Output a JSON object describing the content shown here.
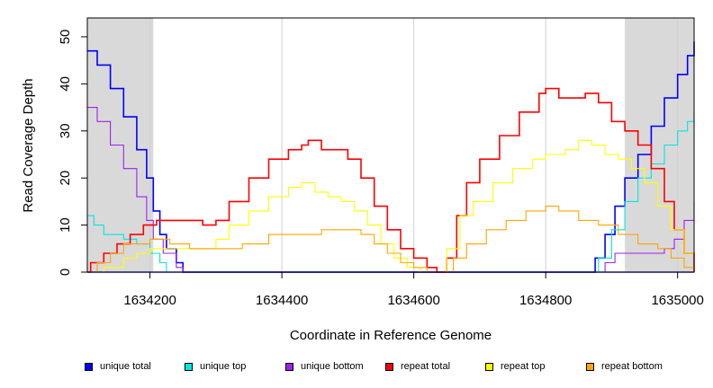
{
  "chart_data": {
    "type": "line",
    "title": "",
    "xlabel": "Coordinate in Reference Genome",
    "ylabel": "Read Coverage Depth",
    "xlim": [
      1634105,
      1635025
    ],
    "ylim": [
      0,
      54
    ],
    "x_ticks": [
      1634200,
      1634400,
      1634600,
      1634800,
      1635000
    ],
    "x_tick_labels": [
      "1634200",
      "1634400",
      "1634600",
      "1634800",
      "1635000"
    ],
    "y_ticks": [
      0,
      10,
      20,
      30,
      40,
      50
    ],
    "y_tick_labels": [
      "0",
      "10",
      "20",
      "30",
      "40",
      "50"
    ],
    "shaded_regions": [
      {
        "from": 1634105,
        "to": 1634205,
        "color": "#d9d9d9"
      },
      {
        "from": 1634920,
        "to": 1635025,
        "color": "#d9d9d9"
      }
    ],
    "series": [
      {
        "name": "unique total",
        "color": "#0000ff",
        "points": [
          [
            1634105,
            47
          ],
          [
            1634120,
            44
          ],
          [
            1634140,
            39
          ],
          [
            1634160,
            33
          ],
          [
            1634180,
            26
          ],
          [
            1634195,
            20
          ],
          [
            1634205,
            13
          ],
          [
            1634215,
            8
          ],
          [
            1634225,
            5
          ],
          [
            1634240,
            2
          ],
          [
            1634250,
            0
          ],
          [
            1634860,
            0
          ],
          [
            1634875,
            3
          ],
          [
            1634890,
            8
          ],
          [
            1634905,
            14
          ],
          [
            1634920,
            20
          ],
          [
            1634940,
            25
          ],
          [
            1634960,
            31
          ],
          [
            1634980,
            37
          ],
          [
            1635000,
            42
          ],
          [
            1635015,
            46
          ],
          [
            1635025,
            49
          ]
        ]
      },
      {
        "name": "unique top",
        "color": "#00e5e5",
        "points": [
          [
            1634105,
            12
          ],
          [
            1634115,
            10
          ],
          [
            1634130,
            8
          ],
          [
            1634160,
            7
          ],
          [
            1634180,
            6
          ],
          [
            1634200,
            4
          ],
          [
            1634215,
            2
          ],
          [
            1634225,
            0
          ],
          [
            1634865,
            0
          ],
          [
            1634880,
            3
          ],
          [
            1634900,
            9
          ],
          [
            1634920,
            15
          ],
          [
            1634940,
            20
          ],
          [
            1634960,
            23
          ],
          [
            1634980,
            27
          ],
          [
            1635000,
            30
          ],
          [
            1635015,
            32
          ],
          [
            1635025,
            34
          ]
        ]
      },
      {
        "name": "unique bottom",
        "color": "#a020f0",
        "points": [
          [
            1634105,
            35
          ],
          [
            1634120,
            32
          ],
          [
            1634140,
            27
          ],
          [
            1634160,
            22
          ],
          [
            1634180,
            16
          ],
          [
            1634195,
            11
          ],
          [
            1634205,
            7
          ],
          [
            1634220,
            4
          ],
          [
            1634240,
            1
          ],
          [
            1634250,
            0
          ],
          [
            1634875,
            0
          ],
          [
            1634890,
            2
          ],
          [
            1634905,
            4
          ],
          [
            1634930,
            4
          ],
          [
            1634960,
            4
          ],
          [
            1634980,
            5
          ],
          [
            1634995,
            7
          ],
          [
            1635010,
            11
          ],
          [
            1635025,
            15
          ]
        ]
      },
      {
        "name": "repeat total",
        "color": "#ff0000",
        "points": [
          [
            1634105,
            0
          ],
          [
            1634110,
            2
          ],
          [
            1634130,
            4
          ],
          [
            1634150,
            6
          ],
          [
            1634170,
            8
          ],
          [
            1634190,
            10
          ],
          [
            1634210,
            11
          ],
          [
            1634240,
            11
          ],
          [
            1634260,
            11
          ],
          [
            1634280,
            10
          ],
          [
            1634300,
            11
          ],
          [
            1634320,
            15
          ],
          [
            1634350,
            20
          ],
          [
            1634380,
            24
          ],
          [
            1634410,
            26
          ],
          [
            1634430,
            27
          ],
          [
            1634440,
            28
          ],
          [
            1634460,
            26
          ],
          [
            1634480,
            26
          ],
          [
            1634500,
            24
          ],
          [
            1634520,
            20
          ],
          [
            1634540,
            14
          ],
          [
            1634560,
            9
          ],
          [
            1634580,
            5
          ],
          [
            1634600,
            3
          ],
          [
            1634620,
            1
          ],
          [
            1634635,
            0
          ],
          [
            1634650,
            3
          ],
          [
            1634665,
            12
          ],
          [
            1634680,
            19
          ],
          [
            1634700,
            24
          ],
          [
            1634730,
            29
          ],
          [
            1634760,
            34
          ],
          [
            1634790,
            38
          ],
          [
            1634800,
            39
          ],
          [
            1634820,
            37
          ],
          [
            1634840,
            37
          ],
          [
            1634860,
            38
          ],
          [
            1634880,
            36
          ],
          [
            1634900,
            32
          ],
          [
            1634920,
            30
          ],
          [
            1634940,
            27
          ],
          [
            1634960,
            22
          ],
          [
            1634980,
            15
          ],
          [
            1634995,
            9
          ],
          [
            1635010,
            4
          ],
          [
            1635025,
            0
          ]
        ]
      },
      {
        "name": "repeat top",
        "color": "#ffff00",
        "points": [
          [
            1634105,
            0
          ],
          [
            1634130,
            1
          ],
          [
            1634160,
            3
          ],
          [
            1634180,
            4
          ],
          [
            1634200,
            5
          ],
          [
            1634230,
            5
          ],
          [
            1634260,
            5
          ],
          [
            1634280,
            5
          ],
          [
            1634300,
            7
          ],
          [
            1634320,
            10
          ],
          [
            1634350,
            13
          ],
          [
            1634380,
            16
          ],
          [
            1634410,
            18
          ],
          [
            1634430,
            19
          ],
          [
            1634450,
            17
          ],
          [
            1634470,
            16
          ],
          [
            1634490,
            15
          ],
          [
            1634510,
            13
          ],
          [
            1634530,
            10
          ],
          [
            1634550,
            6
          ],
          [
            1634570,
            3
          ],
          [
            1634590,
            1
          ],
          [
            1634610,
            0
          ],
          [
            1634630,
            0
          ],
          [
            1634650,
            5
          ],
          [
            1634670,
            12
          ],
          [
            1634690,
            15
          ],
          [
            1634720,
            19
          ],
          [
            1634750,
            22
          ],
          [
            1634780,
            24
          ],
          [
            1634800,
            25
          ],
          [
            1634830,
            26
          ],
          [
            1634850,
            28
          ],
          [
            1634870,
            27
          ],
          [
            1634890,
            25
          ],
          [
            1634910,
            24
          ],
          [
            1634930,
            22
          ],
          [
            1634950,
            19
          ],
          [
            1634970,
            14
          ],
          [
            1634990,
            9
          ],
          [
            1635010,
            4
          ],
          [
            1635025,
            0
          ]
        ]
      },
      {
        "name": "repeat bottom",
        "color": "#ffa500",
        "points": [
          [
            1634105,
            0
          ],
          [
            1634120,
            2
          ],
          [
            1634140,
            4
          ],
          [
            1634160,
            6
          ],
          [
            1634180,
            6
          ],
          [
            1634200,
            7
          ],
          [
            1634230,
            6
          ],
          [
            1634260,
            5
          ],
          [
            1634300,
            5
          ],
          [
            1634340,
            6
          ],
          [
            1634380,
            8
          ],
          [
            1634420,
            8
          ],
          [
            1634460,
            9
          ],
          [
            1634500,
            9
          ],
          [
            1634520,
            8
          ],
          [
            1634540,
            6
          ],
          [
            1634560,
            4
          ],
          [
            1634580,
            2
          ],
          [
            1634600,
            1
          ],
          [
            1634620,
            0
          ],
          [
            1634640,
            0
          ],
          [
            1634660,
            3
          ],
          [
            1634680,
            6
          ],
          [
            1634710,
            9
          ],
          [
            1634740,
            11
          ],
          [
            1634770,
            13
          ],
          [
            1634800,
            14
          ],
          [
            1634820,
            13
          ],
          [
            1634850,
            11
          ],
          [
            1634880,
            10
          ],
          [
            1634910,
            8
          ],
          [
            1634940,
            6
          ],
          [
            1634970,
            5
          ],
          [
            1634990,
            3
          ],
          [
            1635010,
            1
          ],
          [
            1635025,
            0
          ]
        ]
      }
    ]
  }
}
